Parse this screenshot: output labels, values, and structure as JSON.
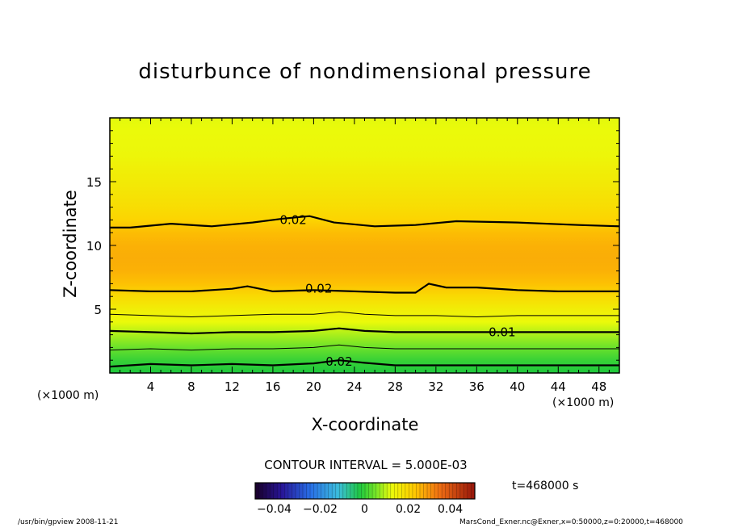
{
  "chart_data": {
    "type": "heatmap",
    "subtype": "filled-contour",
    "title": "disturbunce of nondimensional pressure",
    "xlabel": "X-coordinate",
    "ylabel": "Z-coordinate",
    "x_unit_left": "(×1000 m)",
    "x_unit_right": "(×1000 m)",
    "xlim": [
      0,
      50
    ],
    "ylim": [
      0,
      20
    ],
    "xticks": [
      4,
      8,
      12,
      16,
      20,
      24,
      28,
      32,
      36,
      40,
      44,
      48
    ],
    "xtick_labels": [
      "4",
      "8",
      "12",
      "16",
      "20",
      "24",
      "28",
      "32",
      "36",
      "40",
      "44",
      "48"
    ],
    "yticks": [
      5,
      10,
      15
    ],
    "ytick_labels": [
      "5",
      "10",
      "15"
    ],
    "contour_interval_text": "CONTOUR INTERVAL = 5.000E-03",
    "time_text": "t=468000 s",
    "colorbar": {
      "range": [
        -0.05,
        0.05
      ],
      "tick_values": [
        -0.04,
        -0.02,
        0,
        0.02,
        0.04
      ],
      "tick_labels": [
        "−0.04",
        "−0.02",
        "0",
        "0.02",
        "0.04"
      ]
    },
    "field_profile": {
      "z": [
        0,
        1,
        2,
        3,
        4,
        5,
        6,
        7,
        8,
        9,
        10,
        11,
        12,
        13,
        14,
        15,
        16,
        17,
        18,
        19,
        20
      ],
      "value": [
        -0.002,
        0.0,
        0.004,
        0.008,
        0.012,
        0.015,
        0.019,
        0.0235,
        0.0255,
        0.026,
        0.0255,
        0.024,
        0.0205,
        0.0185,
        0.017,
        0.0155,
        0.0145,
        0.013,
        0.0125,
        0.012,
        0.0115
      ]
    },
    "contours": [
      {
        "level": 0.0,
        "label": "0.00",
        "labeled": true,
        "weight": "bold",
        "x": [
          0,
          4,
          8,
          12,
          16,
          20,
          22.5,
          25,
          28,
          32,
          36,
          40,
          44,
          50
        ],
        "z": [
          0.5,
          0.7,
          0.6,
          0.7,
          0.6,
          0.75,
          1.0,
          0.8,
          0.6,
          0.6,
          0.6,
          0.6,
          0.6,
          0.6
        ]
      },
      {
        "level": 0.005,
        "label": "",
        "labeled": false,
        "weight": "thin",
        "x": [
          0,
          4,
          8,
          12,
          16,
          20,
          22.5,
          25,
          28,
          32,
          36,
          40,
          44,
          50
        ],
        "z": [
          1.8,
          1.9,
          1.8,
          1.9,
          1.9,
          2.0,
          2.2,
          2.0,
          1.9,
          1.9,
          1.9,
          1.9,
          1.9,
          1.9
        ]
      },
      {
        "level": 0.01,
        "label": "0.01",
        "labeled": true,
        "weight": "bold",
        "x": [
          0,
          4,
          8,
          12,
          16,
          20,
          22.5,
          25,
          28,
          32,
          36,
          40,
          44,
          50
        ],
        "z": [
          3.3,
          3.2,
          3.1,
          3.2,
          3.2,
          3.3,
          3.5,
          3.3,
          3.2,
          3.2,
          3.2,
          3.2,
          3.2,
          3.2
        ]
      },
      {
        "level": 0.015,
        "label": "",
        "labeled": false,
        "weight": "thin",
        "x": [
          0,
          4,
          8,
          12,
          16,
          20,
          22.5,
          25,
          28,
          32,
          36,
          40,
          44,
          50
        ],
        "z": [
          4.6,
          4.5,
          4.4,
          4.5,
          4.6,
          4.6,
          4.8,
          4.6,
          4.5,
          4.5,
          4.4,
          4.5,
          4.5,
          4.5
        ]
      },
      {
        "level": 0.02,
        "label": "0.02",
        "labeled": true,
        "weight": "bold",
        "x": [
          0,
          4,
          8,
          12,
          13.5,
          16,
          20,
          24,
          28,
          30,
          31.3,
          33,
          36,
          40,
          44,
          50
        ],
        "z": [
          6.5,
          6.4,
          6.4,
          6.6,
          6.8,
          6.4,
          6.5,
          6.4,
          6.3,
          6.3,
          7.0,
          6.7,
          6.7,
          6.5,
          6.4,
          6.4
        ]
      },
      {
        "level": 0.02,
        "label": "0.02",
        "labeled": true,
        "weight": "bold",
        "x": [
          0,
          2,
          6,
          10,
          14,
          17,
          19.6,
          22,
          26,
          30,
          34,
          40,
          46,
          50
        ],
        "z": [
          11.4,
          11.4,
          11.7,
          11.5,
          11.8,
          12.1,
          12.3,
          11.8,
          11.5,
          11.6,
          11.9,
          11.8,
          11.6,
          11.5
        ]
      }
    ]
  },
  "footer": {
    "left": "/usr/bin/gpview   2008-11-21",
    "right": "MarsCond_Exner.nc@Exner,x=0:50000,z=0:20000,t=468000"
  }
}
